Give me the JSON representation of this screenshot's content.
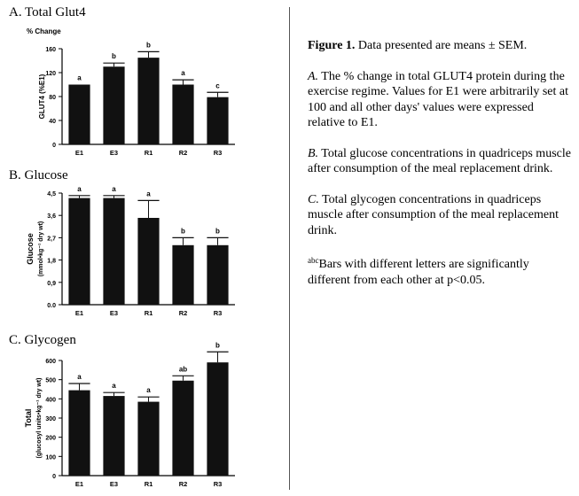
{
  "panels": [
    {
      "id": "A",
      "title": "A.  Total Glut4",
      "chart_data": {
        "type": "bar",
        "subtitle": "% Change",
        "ylabel": "GLUT4 (%E1)",
        "xlabel": "",
        "categories": [
          "E1",
          "E3",
          "R1",
          "R2",
          "R3"
        ],
        "values": [
          100,
          130,
          145,
          100,
          79
        ],
        "errors": [
          0,
          6,
          10,
          8,
          8
        ],
        "letters": [
          "a",
          "b",
          "b",
          "a",
          "c"
        ],
        "ylim": [
          0,
          160
        ],
        "yticks": [
          "0",
          "40",
          "80",
          "120",
          "160"
        ],
        "ytick_values": [
          0,
          40,
          80,
          120,
          160
        ],
        "grid": false
      }
    },
    {
      "id": "B",
      "title": "B.  Glucose",
      "chart_data": {
        "type": "bar",
        "ylabel": "Glucose (mmol•kg⁻¹ dry wt)",
        "xlabel": "",
        "categories": [
          "E1",
          "E3",
          "R1",
          "R2",
          "R3"
        ],
        "values": [
          4.3,
          4.3,
          3.5,
          2.4,
          2.4
        ],
        "errors": [
          0.1,
          0.1,
          0.7,
          0.3,
          0.3
        ],
        "letters": [
          "a",
          "a",
          "a",
          "b",
          "b"
        ],
        "ylim": [
          0,
          4.5
        ],
        "yticks": [
          "0.0",
          "0,9",
          "1,8",
          "2,7",
          "3,6",
          "4,5"
        ],
        "ytick_values": [
          0,
          0.9,
          1.8,
          2.7,
          3.6,
          4.5
        ],
        "grid": false
      }
    },
    {
      "id": "C",
      "title": "C.  Glycogen",
      "chart_data": {
        "type": "bar",
        "ylabel": "Total (glucosyl units•kg⁻¹ dry wt)",
        "xlabel": "",
        "categories": [
          "E1",
          "E3",
          "R1",
          "R2",
          "R3"
        ],
        "values": [
          445,
          415,
          385,
          495,
          590
        ],
        "errors": [
          35,
          18,
          25,
          25,
          55
        ],
        "letters": [
          "a",
          "a",
          "a",
          "ab",
          "b"
        ],
        "ylim": [
          0,
          600
        ],
        "yticks": [
          "0",
          "100",
          "200",
          "300",
          "400",
          "500",
          "600"
        ],
        "ytick_values": [
          0,
          100,
          200,
          300,
          400,
          500,
          600
        ],
        "grid": false
      }
    }
  ],
  "caption": {
    "title": "Figure 1.",
    "title_rest": " Data presented are means ± SEM.",
    "a_letter": "A.",
    "a_text": " The % change in total GLUT4 protein during the exercise regime. Values for E1 were arbitrarily set at 100 and all other days' values were expressed relative to E1.",
    "b_letter": "B.",
    "b_text": " Total glucose concentrations in quadriceps muscle after consumption of the meal replacement drink.",
    "c_letter": "C.",
    "c_text": " Total glycogen concentrations in quadriceps muscle after consumption of the meal replacement drink.",
    "note_sup": "abc",
    "note_text": "Bars with different letters are significantly different from each other at p<0.05."
  }
}
